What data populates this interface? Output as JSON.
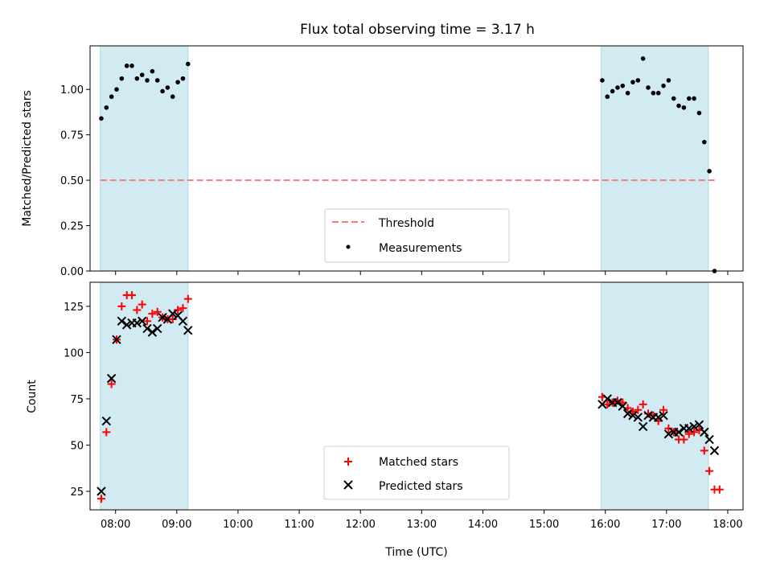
{
  "chart_data": {
    "title": "Flux total observing time = 3.17 h",
    "xlabel": "Time (UTC)",
    "x_ticks": [
      "08:00",
      "09:00",
      "10:00",
      "11:00",
      "12:00",
      "13:00",
      "14:00",
      "15:00",
      "16:00",
      "17:00",
      "18:00"
    ],
    "x_range": [
      "07:35",
      "18:15"
    ],
    "observing_windows": [
      [
        "07:45",
        "09:11"
      ],
      [
        "15:56",
        "17:41"
      ]
    ],
    "window_color": "#add8e6",
    "panels": [
      {
        "type": "scatter",
        "ylabel": "Matched/Predicted stars",
        "ylim": [
          0,
          1.24
        ],
        "y_ticks": [
          "0.00",
          "0.25",
          "0.50",
          "0.75",
          "1.00"
        ],
        "threshold": 0.5,
        "threshold_color": "#f08080",
        "legend": {
          "position": "bottom-center",
          "entries": [
            "Threshold",
            "Measurements"
          ]
        },
        "series": [
          {
            "name": "Measurements",
            "marker": "dot",
            "color": "#000000",
            "points": [
              [
                "07:46",
                0.84
              ],
              [
                "07:51",
                0.9
              ],
              [
                "07:56",
                0.96
              ],
              [
                "08:01",
                1.0
              ],
              [
                "08:06",
                1.06
              ],
              [
                "08:11",
                1.13
              ],
              [
                "08:16",
                1.13
              ],
              [
                "08:21",
                1.06
              ],
              [
                "08:26",
                1.08
              ],
              [
                "08:31",
                1.05
              ],
              [
                "08:36",
                1.1
              ],
              [
                "08:41",
                1.05
              ],
              [
                "08:46",
                0.99
              ],
              [
                "08:51",
                1.01
              ],
              [
                "08:56",
                0.96
              ],
              [
                "09:01",
                1.04
              ],
              [
                "09:06",
                1.06
              ],
              [
                "09:11",
                1.14
              ],
              [
                "15:57",
                1.05
              ],
              [
                "16:02",
                0.96
              ],
              [
                "16:07",
                0.99
              ],
              [
                "16:12",
                1.01
              ],
              [
                "16:17",
                1.02
              ],
              [
                "16:22",
                0.98
              ],
              [
                "16:27",
                1.04
              ],
              [
                "16:32",
                1.05
              ],
              [
                "16:37",
                1.17
              ],
              [
                "16:42",
                1.01
              ],
              [
                "16:47",
                0.98
              ],
              [
                "16:52",
                0.98
              ],
              [
                "16:57",
                1.02
              ],
              [
                "17:02",
                1.05
              ],
              [
                "17:07",
                0.95
              ],
              [
                "17:12",
                0.91
              ],
              [
                "17:17",
                0.9
              ],
              [
                "17:22",
                0.95
              ],
              [
                "17:27",
                0.95
              ],
              [
                "17:32",
                0.87
              ],
              [
                "17:37",
                0.71
              ],
              [
                "17:42",
                0.55
              ],
              [
                "17:47",
                0.0
              ]
            ]
          }
        ]
      },
      {
        "type": "scatter",
        "ylabel": "Count",
        "ylim": [
          15,
          138
        ],
        "y_ticks": [
          "25",
          "50",
          "75",
          "100",
          "125"
        ],
        "legend": {
          "position": "bottom-center",
          "entries": [
            "Matched stars",
            "Predicted stars"
          ]
        },
        "series": [
          {
            "name": "Matched stars",
            "marker": "plus",
            "color": "#ff0000",
            "points": [
              [
                "07:46",
                21
              ],
              [
                "07:51",
                57
              ],
              [
                "07:56",
                83
              ],
              [
                "08:01",
                107
              ],
              [
                "08:06",
                125
              ],
              [
                "08:11",
                131
              ],
              [
                "08:16",
                131
              ],
              [
                "08:21",
                123
              ],
              [
                "08:26",
                126
              ],
              [
                "08:31",
                117
              ],
              [
                "08:36",
                121
              ],
              [
                "08:41",
                122
              ],
              [
                "08:46",
                119
              ],
              [
                "08:51",
                118
              ],
              [
                "08:56",
                118
              ],
              [
                "09:01",
                123
              ],
              [
                "09:06",
                124
              ],
              [
                "09:11",
                129
              ],
              [
                "15:57",
                76
              ],
              [
                "16:02",
                72
              ],
              [
                "16:07",
                73
              ],
              [
                "16:12",
                74
              ],
              [
                "16:17",
                73
              ],
              [
                "16:22",
                70
              ],
              [
                "16:27",
                68
              ],
              [
                "16:32",
                69
              ],
              [
                "16:37",
                72
              ],
              [
                "16:42",
                67
              ],
              [
                "16:47",
                66
              ],
              [
                "16:52",
                63
              ],
              [
                "16:57",
                69
              ],
              [
                "17:02",
                59
              ],
              [
                "17:07",
                57
              ],
              [
                "17:12",
                53
              ],
              [
                "17:17",
                53
              ],
              [
                "17:22",
                56
              ],
              [
                "17:27",
                57
              ],
              [
                "17:32",
                58
              ],
              [
                "17:37",
                47
              ],
              [
                "17:42",
                36
              ],
              [
                "17:47",
                26
              ],
              [
                "17:52",
                26
              ]
            ]
          },
          {
            "name": "Predicted stars",
            "marker": "x",
            "color": "#000000",
            "points": [
              [
                "07:46",
                25
              ],
              [
                "07:51",
                63
              ],
              [
                "07:56",
                86
              ],
              [
                "08:01",
                107
              ],
              [
                "08:06",
                117
              ],
              [
                "08:11",
                115
              ],
              [
                "08:16",
                116
              ],
              [
                "08:21",
                116
              ],
              [
                "08:26",
                117
              ],
              [
                "08:31",
                113
              ],
              [
                "08:36",
                111
              ],
              [
                "08:41",
                113
              ],
              [
                "08:46",
                119
              ],
              [
                "08:51",
                118
              ],
              [
                "08:56",
                121
              ],
              [
                "09:01",
                120
              ],
              [
                "09:06",
                117
              ],
              [
                "09:11",
                112
              ],
              [
                "15:57",
                72
              ],
              [
                "16:02",
                75
              ],
              [
                "16:07",
                73
              ],
              [
                "16:12",
                73
              ],
              [
                "16:17",
                71
              ],
              [
                "16:22",
                67
              ],
              [
                "16:27",
                66
              ],
              [
                "16:32",
                65
              ],
              [
                "16:37",
                60
              ],
              [
                "16:42",
                66
              ],
              [
                "16:47",
                65
              ],
              [
                "16:52",
                65
              ],
              [
                "16:57",
                66
              ],
              [
                "17:02",
                56
              ],
              [
                "17:07",
                57
              ],
              [
                "17:12",
                57
              ],
              [
                "17:17",
                59
              ],
              [
                "17:22",
                59
              ],
              [
                "17:27",
                60
              ],
              [
                "17:32",
                61
              ],
              [
                "17:37",
                57
              ],
              [
                "17:42",
                53
              ],
              [
                "17:47",
                47
              ]
            ]
          }
        ]
      }
    ]
  }
}
